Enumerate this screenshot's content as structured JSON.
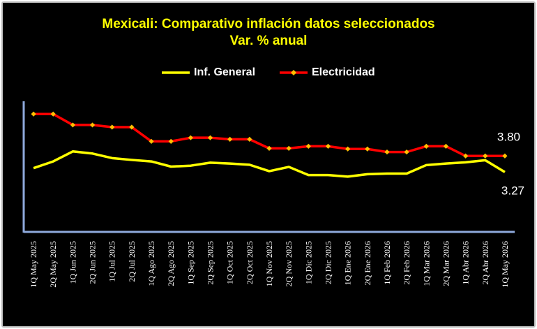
{
  "chart_data": {
    "type": "line",
    "title": "Mexicali: Comparativo inflación datos seleccionados",
    "subtitle": "Var. % anual",
    "legend_position": "top",
    "categories": [
      "1Q May 2025",
      "2Q May 2025",
      "1Q Jun 2025",
      "2Q Jun 2025",
      "1Q Jul 2025",
      "2Q Jul 2025",
      "1Q Ago 2025",
      "2Q Ago 2025",
      "1Q Sep 2025",
      "2Q Sep 2025",
      "1Q Oct 2025",
      "2Q Oct 2025",
      "1Q Nov 2025",
      "2Q Nov 2025",
      "1Q Dic 2025",
      "2Q Dic 2025",
      "1Q Ene 2026",
      "2Q Ene 2026",
      "1Q Feb 2026",
      "2Q Feb 2026",
      "1Q Mar 2026",
      "2Q Mar 2026",
      "1Q Abr 2026",
      "2Q Abr 2026",
      "1Q May 2026"
    ],
    "series": [
      {
        "name": "Inf. General",
        "color": "#ffff00",
        "marker": "none",
        "values": [
          3.4,
          3.62,
          3.95,
          3.88,
          3.73,
          3.67,
          3.62,
          3.45,
          3.48,
          3.58,
          3.55,
          3.51,
          3.3,
          3.44,
          3.17,
          3.17,
          3.12,
          3.2,
          3.22,
          3.22,
          3.5,
          3.55,
          3.59,
          3.66,
          3.27
        ]
      },
      {
        "name": "Electricidad",
        "color": "#ff0000",
        "marker_color": "#ffc000",
        "marker": "diamond",
        "values": [
          5.18,
          5.18,
          4.82,
          4.82,
          4.75,
          4.75,
          4.28,
          4.28,
          4.4,
          4.4,
          4.35,
          4.35,
          4.05,
          4.05,
          4.12,
          4.12,
          4.03,
          4.03,
          3.93,
          3.93,
          4.12,
          4.12,
          3.8,
          3.8,
          3.8
        ]
      }
    ],
    "data_labels": [
      {
        "series": 1,
        "index": 24,
        "text": "3.80"
      },
      {
        "series": 0,
        "index": 24,
        "text": "3.27"
      }
    ],
    "ylim": [
      1.3,
      5.6
    ],
    "grid": false,
    "xlabel": "",
    "ylabel": ""
  }
}
